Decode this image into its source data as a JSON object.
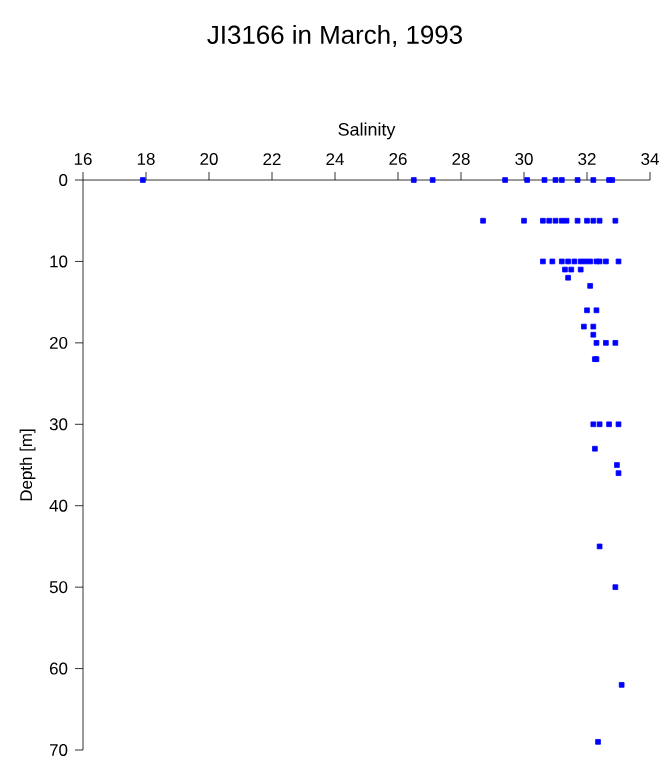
{
  "chart_data": {
    "type": "scatter",
    "title": "JI3166 in March, 1993",
    "xlabel": "Salinity",
    "ylabel": "Depth [m]",
    "xlim": [
      16,
      34
    ],
    "xticks": [
      16,
      18,
      20,
      22,
      24,
      26,
      28,
      30,
      32,
      34
    ],
    "ylim": [
      70,
      0
    ],
    "yticks": [
      0,
      10,
      20,
      30,
      40,
      50,
      60,
      70
    ],
    "marker": "square",
    "grid": false,
    "series": [
      {
        "color": "#0000ff",
        "x": [
          17.9,
          26.5,
          27.1,
          29.4,
          30.1,
          30.65,
          31.0,
          31.2,
          31.7,
          32.2,
          32.7,
          32.8,
          28.7,
          30.0,
          30.6,
          30.8,
          31.0,
          31.2,
          31.35,
          31.7,
          32.0,
          32.2,
          32.4,
          32.9,
          30.6,
          30.9,
          31.2,
          31.4,
          31.6,
          31.8,
          31.95,
          32.1,
          32.3,
          32.4,
          32.6,
          33.0,
          31.3,
          31.5,
          31.8,
          31.4,
          32.1,
          32.0,
          32.3,
          31.9,
          32.2,
          32.2,
          32.3,
          32.6,
          32.9,
          32.3,
          32.25,
          32.2,
          32.4,
          32.7,
          33.0,
          32.25,
          32.95,
          33.0,
          32.4,
          32.9,
          33.1,
          32.35
        ],
        "values": [
          0,
          0,
          0,
          0,
          0,
          0,
          0,
          0,
          0,
          0,
          0,
          0,
          5,
          5,
          5,
          5,
          5,
          5,
          5,
          5,
          5,
          5,
          5,
          5,
          10,
          10,
          10,
          10,
          10,
          10,
          10,
          10,
          10,
          10,
          10,
          10,
          11,
          11,
          11,
          12,
          13,
          16,
          16,
          18,
          18,
          19,
          20,
          20,
          20,
          22,
          22,
          30,
          30,
          30,
          30,
          33,
          35,
          36,
          45,
          50,
          62,
          69
        ]
      }
    ]
  }
}
